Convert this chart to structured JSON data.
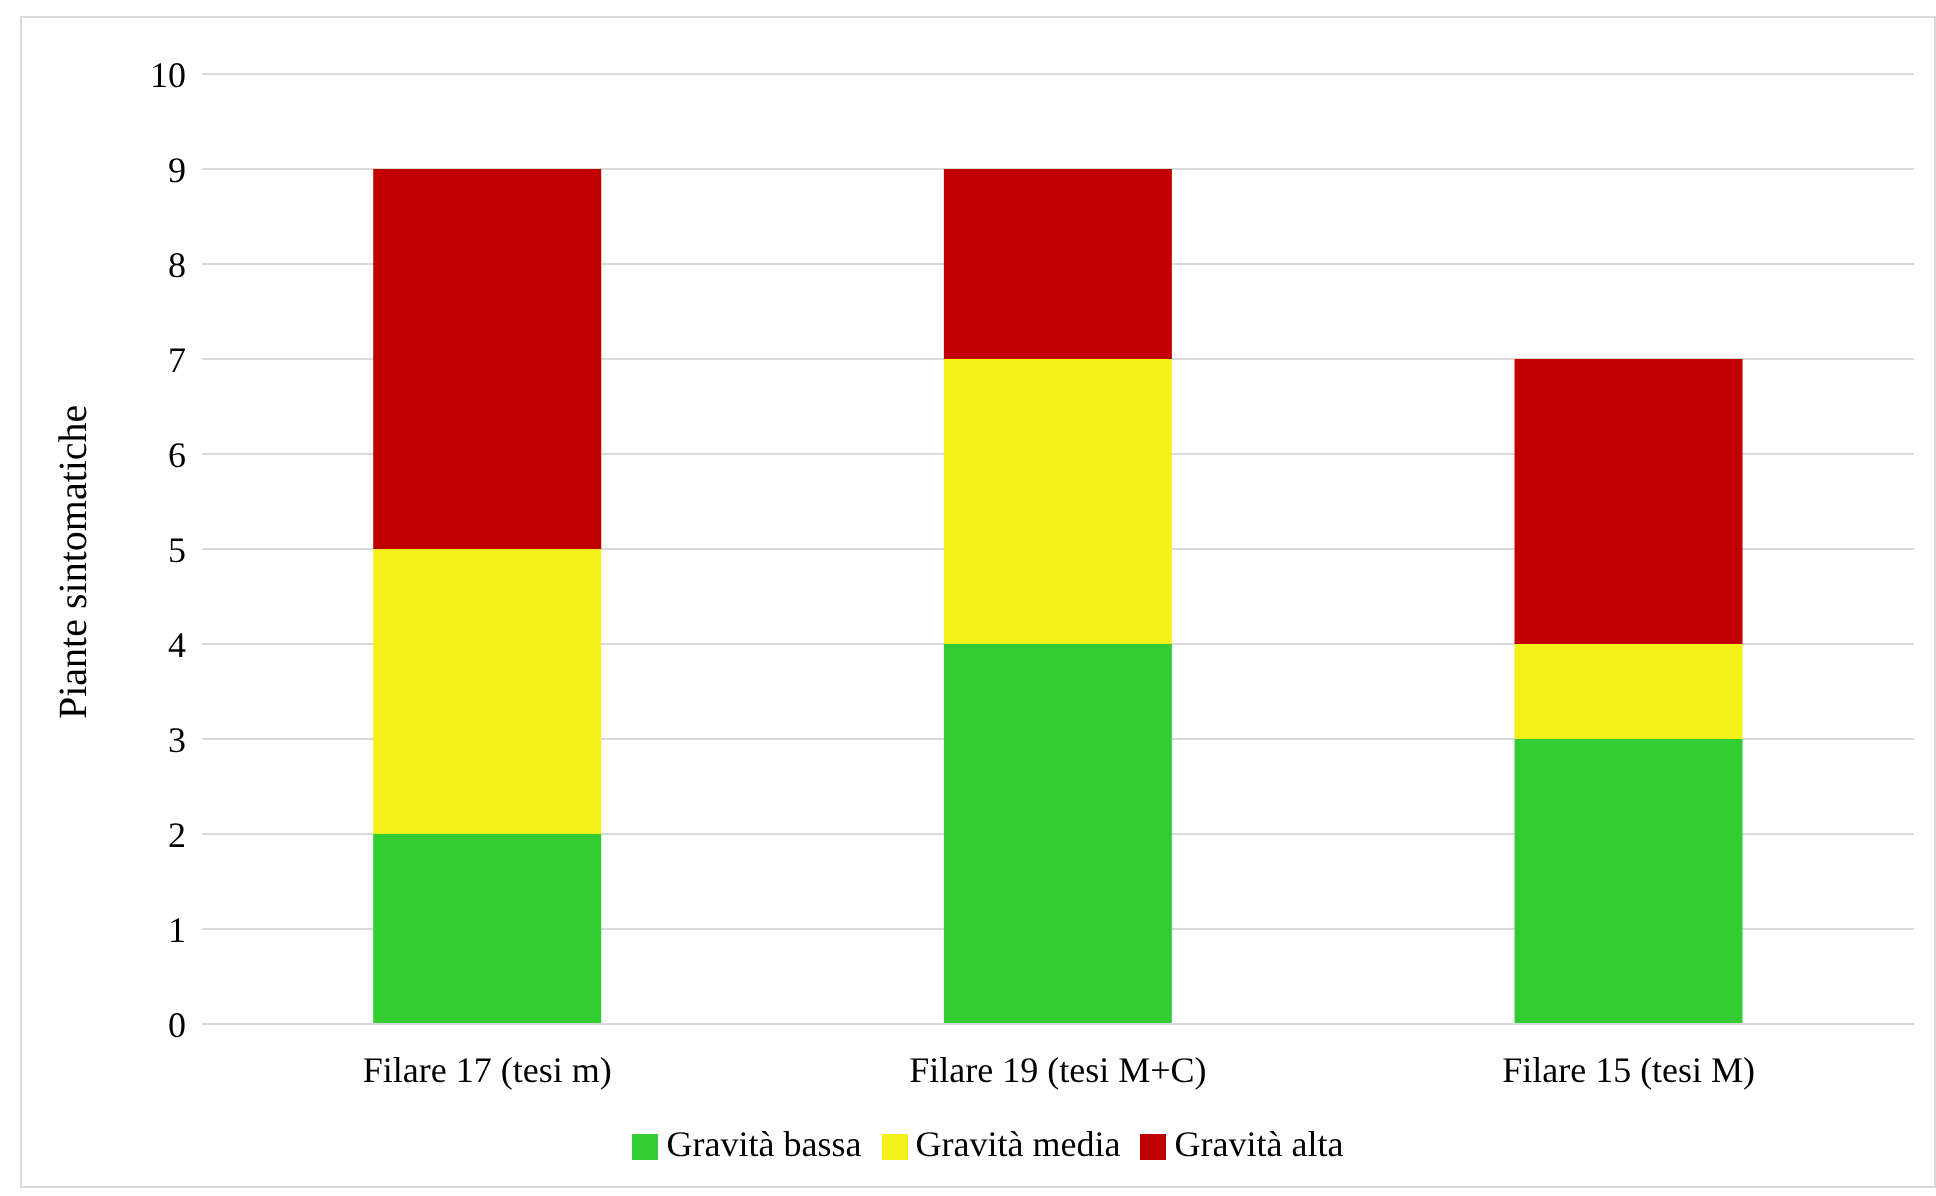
{
  "chart_data": {
    "type": "bar",
    "stacked": true,
    "ylabel": "Piante sintomatiche",
    "categories": [
      "Filare 17 (tesi m)",
      "Filare 19 (tesi M+C)",
      "Filare 15 (tesi M)"
    ],
    "series": [
      {
        "name": "Gravità bassa",
        "color": "#33cc33",
        "values": [
          2,
          4,
          3
        ]
      },
      {
        "name": "Gravità media",
        "color": "#f5f01a",
        "values": [
          3,
          3,
          1
        ]
      },
      {
        "name": "Gravità alta",
        "color": "#c00000",
        "values": [
          4,
          2,
          3
        ]
      }
    ],
    "ylim": [
      0,
      10
    ],
    "yticks": [
      0,
      1,
      2,
      3,
      4,
      5,
      6,
      7,
      8,
      9,
      10
    ],
    "grid": "y",
    "legend": "bottom"
  }
}
